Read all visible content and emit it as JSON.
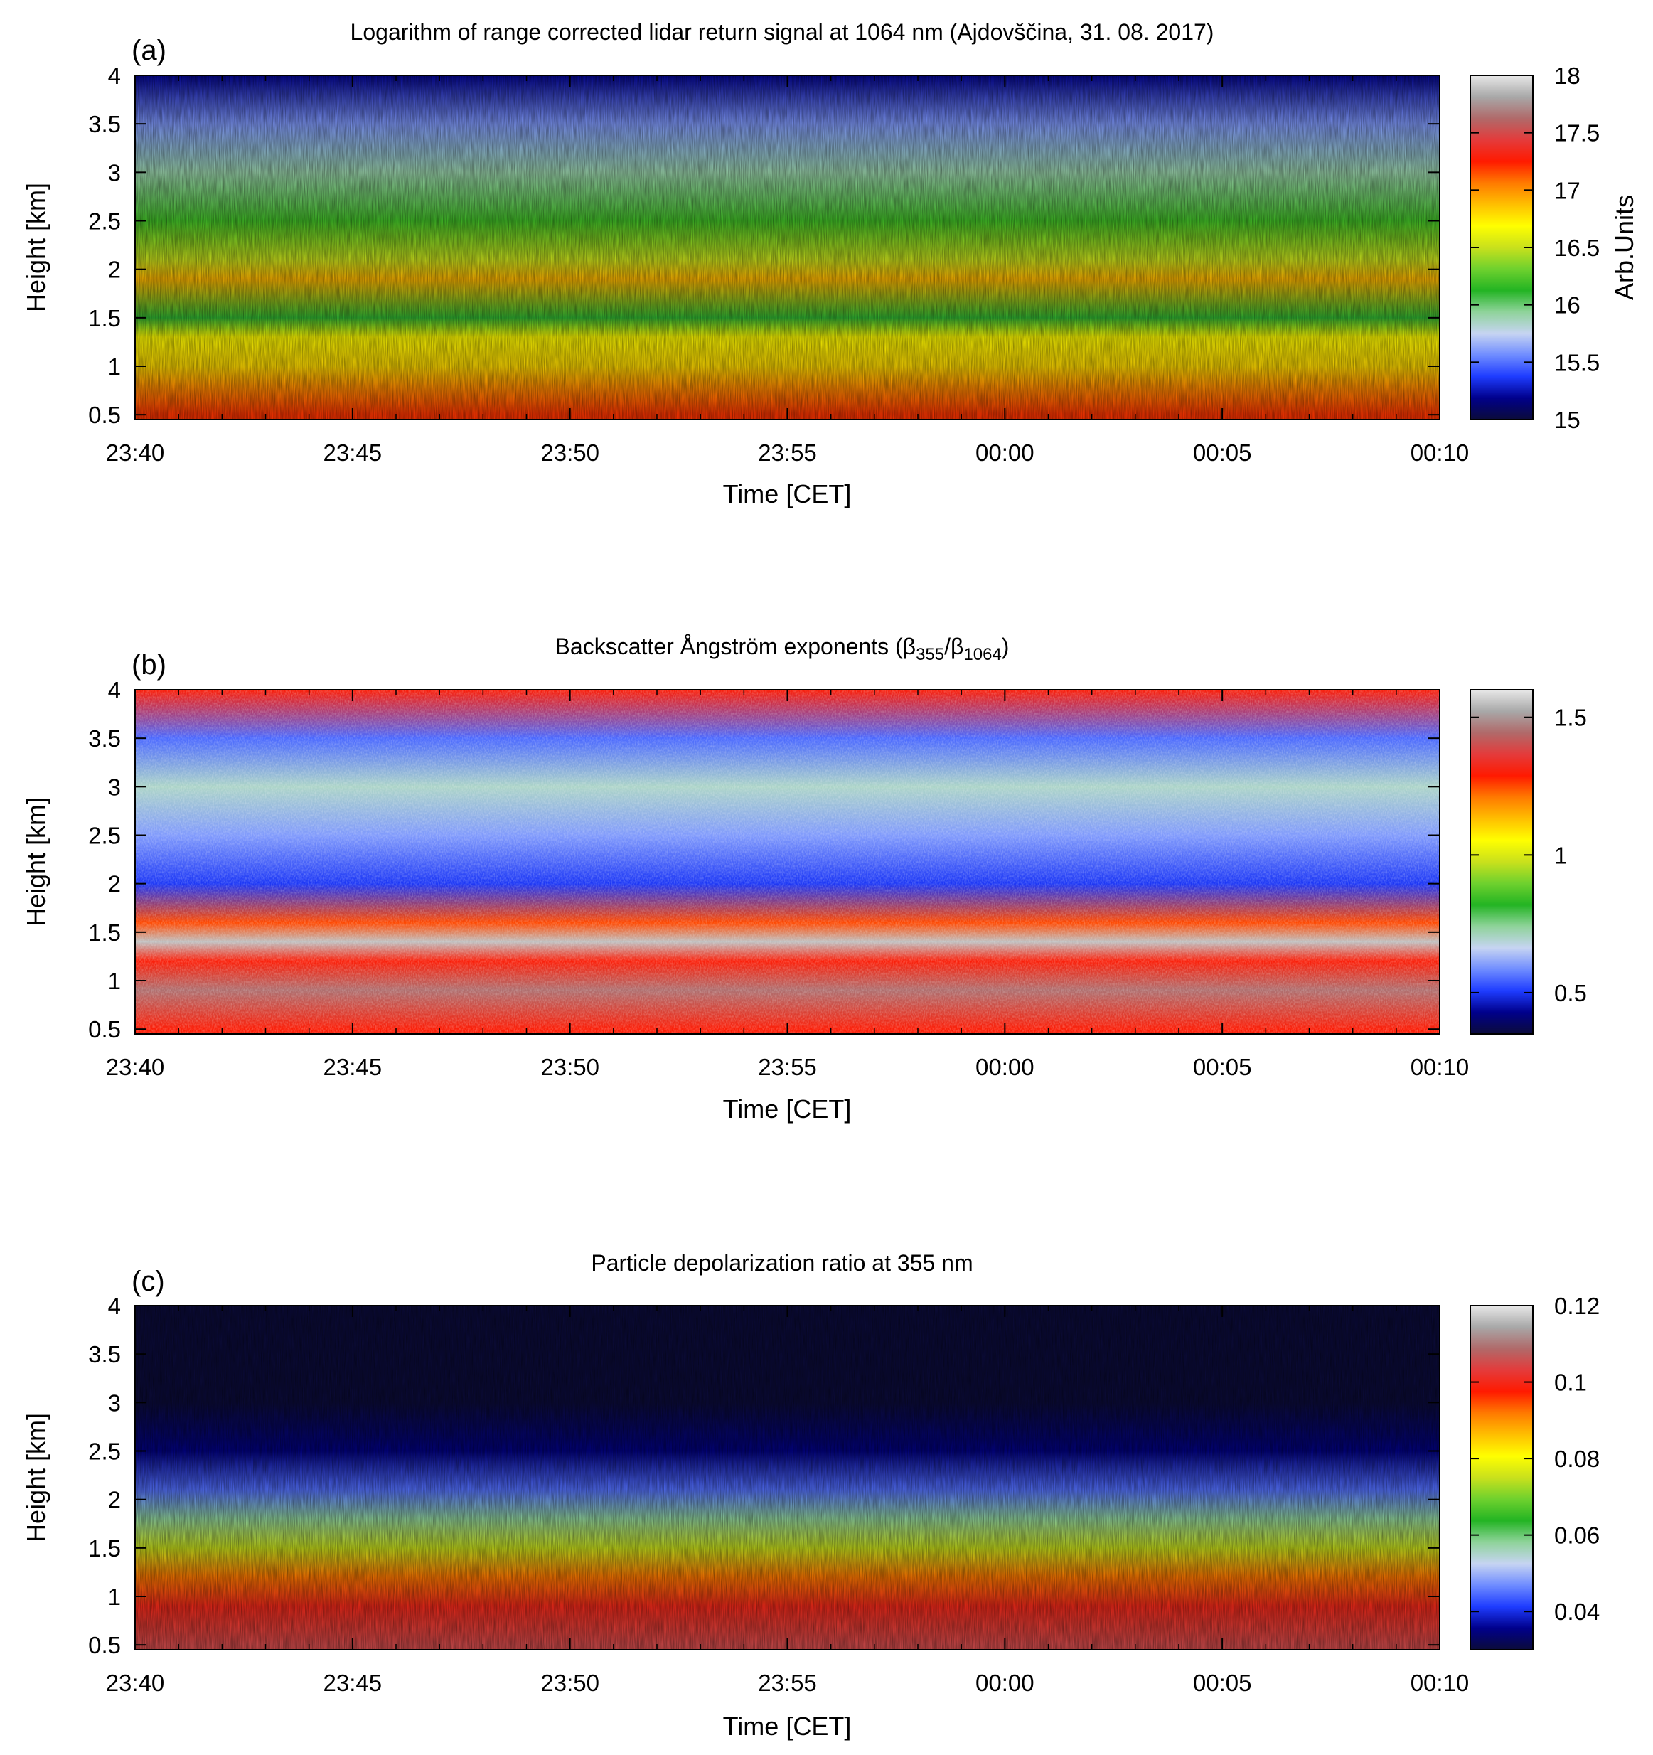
{
  "figure": {
    "colormap": [
      "#0b0b3a",
      "#00008b",
      "#1e3cff",
      "#6f8cff",
      "#c6d4f2",
      "#8fd39a",
      "#23b423",
      "#6fd12e",
      "#c9e11c",
      "#ffff00",
      "#ffbf00",
      "#ff7a00",
      "#ff1a00",
      "#e43b3b",
      "#b06a6a",
      "#a8a8a8",
      "#e8e8e8"
    ]
  },
  "chart_data": [
    {
      "type": "heatmap",
      "panel": "(a)",
      "title": "Logarithm of range corrected lidar return signal at 1064 nm (Ajdovščina, 31. 08. 2017)",
      "xlabel": "Time [CET]",
      "ylabel": "Height [km]",
      "x_tick_labels": [
        "23:40",
        "23:45",
        "23:50",
        "23:55",
        "00:00",
        "00:05",
        "00:10"
      ],
      "y_tick_labels": [
        "0.5",
        "1",
        "1.5",
        "2",
        "2.5",
        "3",
        "3.5",
        "4"
      ],
      "y_range_km": [
        0.45,
        4.0
      ],
      "colorbar": {
        "label": "Arb.Units",
        "range": [
          15,
          18
        ],
        "tick_labels": [
          "15",
          "15.5",
          "16",
          "16.5",
          "17",
          "17.5",
          "18"
        ]
      },
      "height_profile": [
        {
          "height_km": 0.5,
          "value": 17.2
        },
        {
          "height_km": 0.8,
          "value": 17.0
        },
        {
          "height_km": 1.0,
          "value": 16.8
        },
        {
          "height_km": 1.3,
          "value": 16.7
        },
        {
          "height_km": 1.5,
          "value": 16.1
        },
        {
          "height_km": 1.9,
          "value": 16.9
        },
        {
          "height_km": 2.1,
          "value": 16.5
        },
        {
          "height_km": 2.5,
          "value": 16.2
        },
        {
          "height_km": 3.0,
          "value": 15.9
        },
        {
          "height_km": 3.5,
          "value": 15.6
        },
        {
          "height_km": 4.0,
          "value": 15.2
        }
      ]
    },
    {
      "type": "heatmap",
      "panel": "(b)",
      "title_parts": {
        "prefix": "Backscatter Ångström exponents (β",
        "sub1": "355",
        "mid": "/β",
        "sub2": "1064",
        "suffix": ")"
      },
      "xlabel": "Time [CET]",
      "ylabel": "Height [km]",
      "x_tick_labels": [
        "23:40",
        "23:45",
        "23:50",
        "23:55",
        "00:00",
        "00:05",
        "00:10"
      ],
      "y_tick_labels": [
        "0.5",
        "1",
        "1.5",
        "2",
        "2.5",
        "3",
        "3.5",
        "4"
      ],
      "y_range_km": [
        0.45,
        4.0
      ],
      "colorbar": {
        "label": "",
        "range": [
          0.35,
          1.6
        ],
        "tick_labels": [
          "0.5",
          "1",
          "1.5"
        ]
      },
      "height_profile": [
        {
          "height_km": 0.5,
          "value": 1.3
        },
        {
          "height_km": 0.9,
          "value": 1.45
        },
        {
          "height_km": 1.2,
          "value": 1.3
        },
        {
          "height_km": 1.4,
          "value": 1.55
        },
        {
          "height_km": 1.6,
          "value": 1.25
        },
        {
          "height_km": 2.0,
          "value": 0.5
        },
        {
          "height_km": 2.5,
          "value": 0.6
        },
        {
          "height_km": 3.0,
          "value": 0.7
        },
        {
          "height_km": 3.5,
          "value": 0.55
        },
        {
          "height_km": 4.0,
          "value": 1.3
        }
      ]
    },
    {
      "type": "heatmap",
      "panel": "(c)",
      "title": "Particle depolarization ratio at 355 nm",
      "xlabel": "Time [CET]",
      "ylabel": "Height [km]",
      "x_tick_labels": [
        "23:40",
        "23:45",
        "23:50",
        "23:55",
        "00:00",
        "00:05",
        "00:10"
      ],
      "y_tick_labels": [
        "0.5",
        "1",
        "1.5",
        "2",
        "2.5",
        "3",
        "3.5",
        "4"
      ],
      "y_range_km": [
        0.45,
        4.0
      ],
      "colorbar": {
        "label": "",
        "range": [
          0.03,
          0.12
        ],
        "tick_labels": [
          "0.04",
          "0.06",
          "0.08",
          "0.1",
          "0.12"
        ]
      },
      "height_profile": [
        {
          "height_km": 0.5,
          "value": 0.105
        },
        {
          "height_km": 0.9,
          "value": 0.1
        },
        {
          "height_km": 1.2,
          "value": 0.092
        },
        {
          "height_km": 1.5,
          "value": 0.075
        },
        {
          "height_km": 1.8,
          "value": 0.058
        },
        {
          "height_km": 2.1,
          "value": 0.045
        },
        {
          "height_km": 2.5,
          "value": 0.035
        },
        {
          "height_km": 3.0,
          "value": 0.03
        },
        {
          "height_km": 4.0,
          "value": 0.03
        }
      ]
    }
  ]
}
